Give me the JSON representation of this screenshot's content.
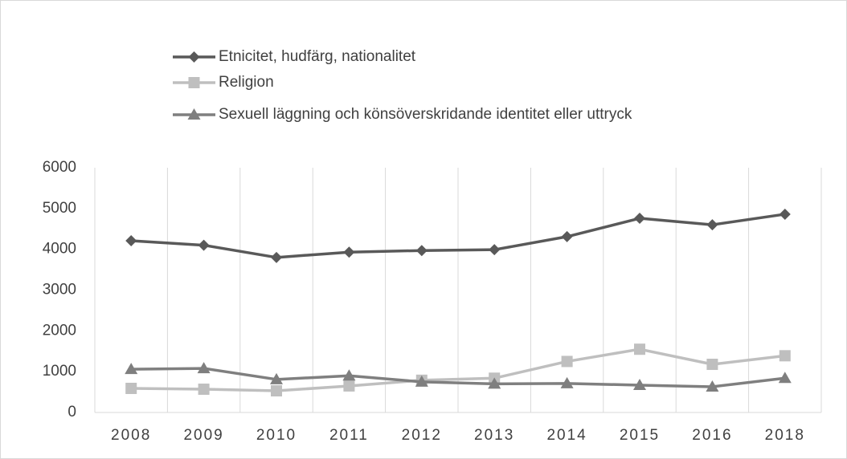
{
  "chart_data": {
    "type": "line",
    "categories": [
      "2008",
      "2009",
      "2010",
      "2011",
      "2012",
      "2013",
      "2014",
      "2015",
      "2016",
      "2018"
    ],
    "series": [
      {
        "name": "Etnicitet, hudfärg, nationalitet",
        "color": "#595959",
        "marker": "diamond",
        "values": [
          4210,
          4100,
          3800,
          3930,
          3970,
          3990,
          4310,
          4760,
          4600,
          4860
        ]
      },
      {
        "name": "Religion",
        "color": "#bfbfbf",
        "marker": "square",
        "values": [
          590,
          570,
          530,
          650,
          790,
          840,
          1250,
          1550,
          1180,
          1390
        ]
      },
      {
        "name": "Sexuell läggning och könsöverskridande identitet eller uttryck",
        "color": "#7f7f7f",
        "marker": "triangle",
        "values": [
          1060,
          1080,
          810,
          900,
          750,
          700,
          710,
          670,
          630,
          840
        ]
      }
    ],
    "ylim": [
      0,
      6000
    ],
    "yticks": [
      0,
      1000,
      2000,
      3000,
      4000,
      5000,
      6000
    ],
    "xgrid": true
  }
}
